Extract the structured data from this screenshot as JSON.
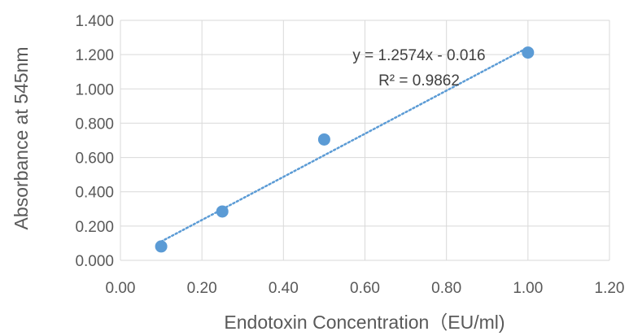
{
  "chart_data": {
    "type": "scatter",
    "title": "",
    "xlabel": "Endotoxin Concentration（EU/ml)",
    "ylabel": "Absorbance at 545nm",
    "xlim": [
      0,
      1.2
    ],
    "ylim": [
      0,
      1.4
    ],
    "x_ticks": [
      "0.00",
      "0.20",
      "0.40",
      "0.60",
      "0.80",
      "1.00",
      "1.20"
    ],
    "y_ticks": [
      "0.000",
      "0.200",
      "0.400",
      "0.600",
      "0.800",
      "1.000",
      "1.200",
      "1.400"
    ],
    "grid": true,
    "legend": "none",
    "series": [
      {
        "x": [
          0.1,
          0.25,
          0.5,
          1.0
        ],
        "y": [
          0.081,
          0.285,
          0.705,
          1.212
        ],
        "color": "#5b9bd5"
      }
    ],
    "trendline": {
      "type": "linear",
      "slope": 1.2574,
      "intercept": -0.016,
      "color": "#5b9bd5",
      "style": "dotted",
      "x_range": [
        0.1,
        1.0
      ],
      "equation": "y = 1.2574x - 0.016",
      "r_squared": "R² = 0.9862"
    }
  }
}
